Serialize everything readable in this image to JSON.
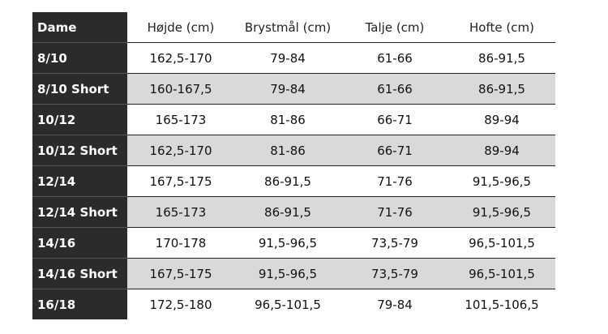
{
  "table": {
    "header": [
      "Dame",
      "Højde (cm)",
      "Brystmål (cm)",
      "Talje (cm)",
      "Hofte (cm)"
    ],
    "rows": [
      [
        "8/10",
        "162,5-170",
        "79-84",
        "61-66",
        "86-91,5"
      ],
      [
        "8/10 Short",
        "160-167,5",
        "79-84",
        "61-66",
        "86-91,5"
      ],
      [
        "10/12",
        "165-173",
        "81-86",
        "66-71",
        "89-94"
      ],
      [
        "10/12 Short",
        "162,5-170",
        "81-86",
        "66-71",
        "89-94"
      ],
      [
        "12/14",
        "167,5-175",
        "86-91,5",
        "71-76",
        "91,5-96,5"
      ],
      [
        "12/14 Short",
        "165-173",
        "86-91,5",
        "71-76",
        "91,5-96,5"
      ],
      [
        "14/16",
        "170-178",
        "91,5-96,5",
        "73,5-79",
        "96,5-101,5"
      ],
      [
        "14/16 Short",
        "167,5-175",
        "91,5-96,5",
        "73,5-79",
        "96,5-101,5"
      ],
      [
        "16/18",
        "172,5-180",
        "96,5-101,5",
        "79-84",
        "101,5-106,5"
      ]
    ]
  }
}
